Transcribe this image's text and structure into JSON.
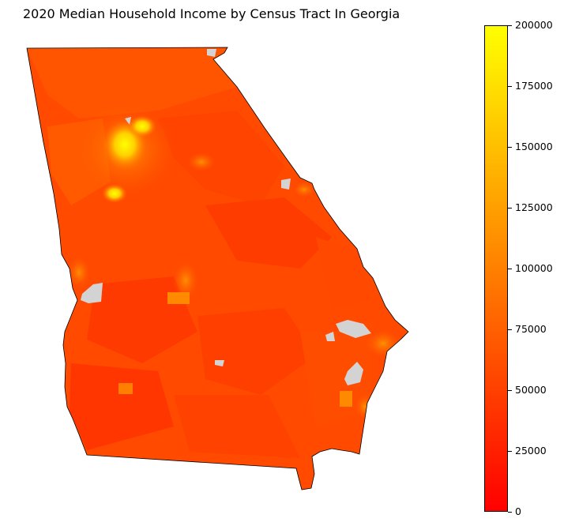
{
  "title": "2020 Median Household Income by Census Tract In Georgia",
  "colorbar": {
    "min": 0,
    "max": 200000,
    "colormap": "autumn",
    "ticks": [
      "0",
      "25000",
      "50000",
      "75000",
      "100000",
      "125000",
      "150000",
      "175000",
      "200000"
    ],
    "stops": [
      "#ff0000",
      "#ff4000",
      "#ff8000",
      "#ffbf00",
      "#ffff00"
    ]
  },
  "map": {
    "region": "Georgia",
    "no_data_color": "#d3d3d3"
  }
}
